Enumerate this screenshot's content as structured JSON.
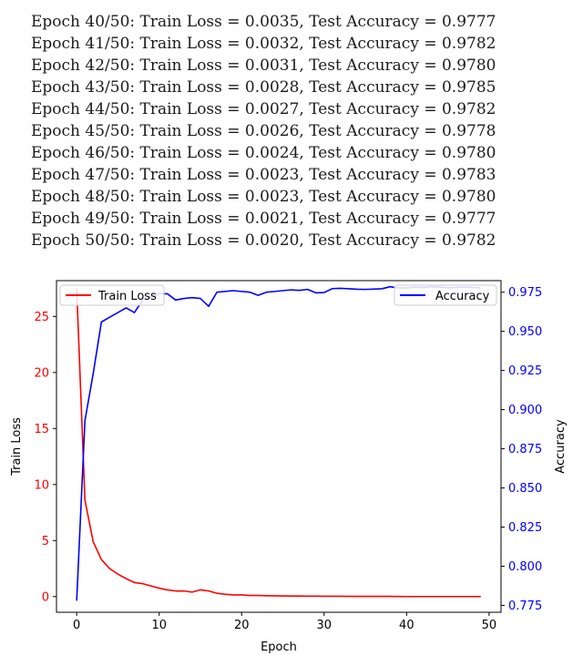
{
  "log_lines": [
    "Epoch 40/50: Train Loss = 0.0035, Test Accuracy = 0.9777",
    "Epoch 41/50: Train Loss = 0.0032, Test Accuracy = 0.9782",
    "Epoch 42/50: Train Loss = 0.0031, Test Accuracy = 0.9780",
    "Epoch 43/50: Train Loss = 0.0028, Test Accuracy = 0.9785",
    "Epoch 44/50: Train Loss = 0.0027, Test Accuracy = 0.9782",
    "Epoch 45/50: Train Loss = 0.0026, Test Accuracy = 0.9778",
    "Epoch 46/50: Train Loss = 0.0024, Test Accuracy = 0.9780",
    "Epoch 47/50: Train Loss = 0.0023, Test Accuracy = 0.9783",
    "Epoch 48/50: Train Loss = 0.0023, Test Accuracy = 0.9780",
    "Epoch 49/50: Train Loss = 0.0021, Test Accuracy = 0.9777",
    "Epoch 50/50: Train Loss = 0.0020, Test Accuracy = 0.9782"
  ],
  "chart_data": {
    "type": "line",
    "title": "",
    "xlabel": "Epoch",
    "ylabel_left": "Train Loss",
    "ylabel_right": "Accuracy",
    "xlim": [
      -2.45,
      51.45
    ],
    "ylim_left": [
      -1.4,
      28.2
    ],
    "ylim_right": [
      0.7706,
      0.9824
    ],
    "x_ticks": [
      0,
      10,
      20,
      30,
      40,
      50
    ],
    "y_ticks_left": [
      0,
      5,
      10,
      15,
      20,
      25
    ],
    "y_ticks_right": [
      0.775,
      0.8,
      0.825,
      0.85,
      0.875,
      0.9,
      0.925,
      0.95,
      0.975
    ],
    "y_tick_labels_right": [
      "0.775",
      "0.800",
      "0.825",
      "0.850",
      "0.875",
      "0.900",
      "0.925",
      "0.950",
      "0.975"
    ],
    "grid": false,
    "x": [
      0,
      1,
      2,
      3,
      4,
      5,
      6,
      7,
      8,
      9,
      10,
      11,
      12,
      13,
      14,
      15,
      16,
      17,
      18,
      19,
      20,
      21,
      22,
      23,
      24,
      25,
      26,
      27,
      28,
      29,
      30,
      31,
      32,
      33,
      34,
      35,
      36,
      37,
      38,
      39,
      40,
      41,
      42,
      43,
      44,
      45,
      46,
      47,
      48,
      49
    ],
    "series": [
      {
        "name": "Train Loss",
        "axis": "left",
        "color": "#ff0000",
        "legend": "top-left",
        "values": [
          27.5,
          8.6,
          4.9,
          3.3,
          2.5,
          2.0,
          1.6,
          1.25,
          1.15,
          0.95,
          0.75,
          0.6,
          0.5,
          0.5,
          0.4,
          0.6,
          0.5,
          0.3,
          0.2,
          0.15,
          0.15,
          0.1,
          0.1,
          0.08,
          0.07,
          0.06,
          0.05,
          0.05,
          0.04,
          0.04,
          0.03,
          0.03,
          0.03,
          0.02,
          0.02,
          0.02,
          0.02,
          0.015,
          0.015,
          0.012,
          0.0035,
          0.0032,
          0.0031,
          0.0028,
          0.0027,
          0.0026,
          0.0024,
          0.0023,
          0.0023,
          0.0021
        ]
      },
      {
        "name": "Accuracy",
        "axis": "right",
        "color": "#0000ff",
        "legend": "top-right",
        "values": [
          0.778,
          0.893,
          0.923,
          0.956,
          0.959,
          0.962,
          0.965,
          0.962,
          0.97,
          0.972,
          0.974,
          0.974,
          0.97,
          0.971,
          0.9715,
          0.971,
          0.966,
          0.975,
          0.9755,
          0.976,
          0.9755,
          0.975,
          0.973,
          0.975,
          0.9755,
          0.976,
          0.9765,
          0.9762,
          0.9768,
          0.9746,
          0.9748,
          0.9773,
          0.9775,
          0.9772,
          0.9769,
          0.9768,
          0.977,
          0.9772,
          0.9785,
          0.9777,
          0.9777,
          0.9782,
          0.978,
          0.9785,
          0.9782,
          0.9778,
          0.978,
          0.9783,
          0.978,
          0.9777
        ]
      }
    ]
  }
}
